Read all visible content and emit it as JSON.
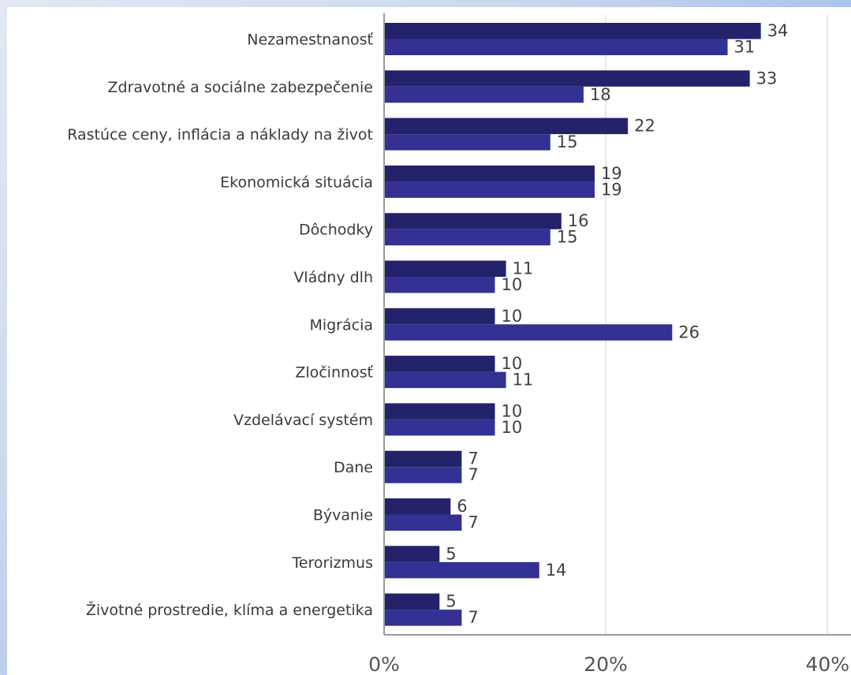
{
  "colors": {
    "series_1": "#24226a",
    "series_2": "#333193",
    "axis": "#9a9a9a",
    "grid": "#d0d0d0"
  },
  "chart_data": {
    "type": "bar",
    "orientation": "horizontal",
    "categories": [
      "Nezamestnanosť",
      "Zdravotné a sociálne zabezpečenie",
      "Rastúce ceny, inflácia a náklady na život",
      "Ekonomická situácia",
      "Dôchodky",
      "Vládny dlh",
      "Migrácia",
      "Zločinnosť",
      "Vzdelávací systém",
      "Dane",
      "Bývanie",
      "Terorizmus",
      "Životné prostredie, klíma a energetika"
    ],
    "series": [
      {
        "values": [
          34,
          33,
          22,
          19,
          16,
          11,
          10,
          10,
          10,
          7,
          6,
          5,
          5
        ]
      },
      {
        "values": [
          31,
          18,
          15,
          19,
          15,
          10,
          26,
          11,
          10,
          7,
          7,
          14,
          7
        ]
      }
    ],
    "xlim": [
      0,
      40
    ],
    "xticks": [
      "0%",
      "20%",
      "40%"
    ],
    "grid": true,
    "legend": "none"
  }
}
